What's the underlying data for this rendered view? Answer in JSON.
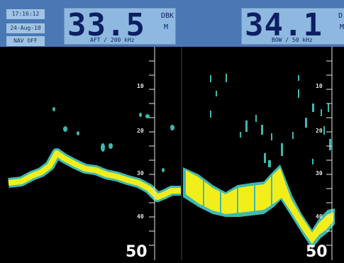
{
  "status": {
    "time": "17:16:12",
    "date": "24-Aug-10",
    "nav": "NAV OFF"
  },
  "left_channel": {
    "depth": "33.5",
    "unit_label": "DBK",
    "unit_m": "M",
    "setting": "AFT / 200 kHz",
    "scale_labels": [
      "10",
      "20",
      "30",
      "40"
    ],
    "range_end": "50"
  },
  "right_channel": {
    "depth": "34.1",
    "unit_label": "D",
    "unit_m": "M",
    "setting": "BOW / 50 kHz",
    "scale_labels": [
      "10",
      "20",
      "30",
      "40"
    ],
    "range_end": "50"
  },
  "colors": {
    "topbar": "#4a78b4",
    "readout_bg": "#8fb8e0",
    "readout_text": "#0c1f63",
    "echo_bg": "#000000",
    "bottom_echo": "#f2ee1c",
    "echo_edge": "#3fb8b0",
    "grid": "#e8e8e8"
  }
}
